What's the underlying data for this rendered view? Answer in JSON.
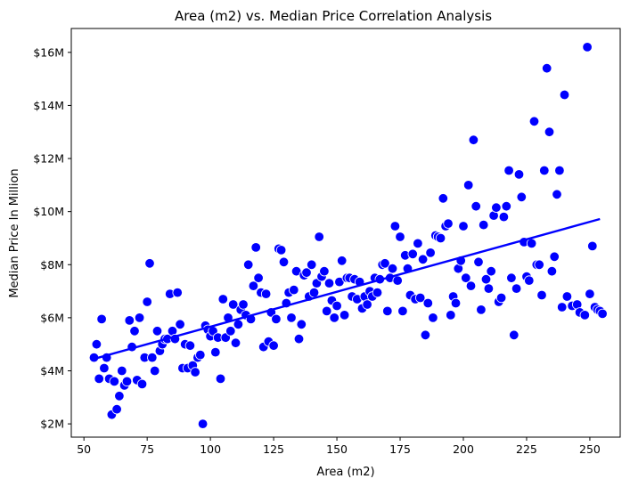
{
  "chart_data": {
    "type": "scatter",
    "title": "Area (m2) vs. Median Price Correlation Analysis",
    "xlabel": "Area (m2)",
    "ylabel": "Median Price In Million",
    "xlim": [
      45,
      262
    ],
    "ylim": [
      1.5,
      16.9
    ],
    "x_ticks": [
      50,
      75,
      100,
      125,
      150,
      175,
      200,
      225,
      250
    ],
    "y_ticks": [
      2,
      4,
      6,
      8,
      10,
      12,
      14,
      16
    ],
    "y_tick_labels": [
      "$2M",
      "$4M",
      "$6M",
      "$8M",
      "$10M",
      "$12M",
      "$14M",
      "$16M"
    ],
    "grid": false,
    "point_color": "#0000ff",
    "trend_line": {
      "color": "#0000ff",
      "x": [
        54,
        254
      ],
      "y": [
        4.45,
        9.72
      ]
    },
    "points": [
      [
        54,
        4.5
      ],
      [
        55,
        5.0
      ],
      [
        56,
        3.7
      ],
      [
        57,
        5.95
      ],
      [
        58,
        4.1
      ],
      [
        59,
        4.5
      ],
      [
        60,
        3.7
      ],
      [
        61,
        2.35
      ],
      [
        62,
        3.6
      ],
      [
        63,
        2.55
      ],
      [
        64,
        3.05
      ],
      [
        65,
        4.0
      ],
      [
        66,
        3.45
      ],
      [
        67,
        3.6
      ],
      [
        68,
        5.9
      ],
      [
        69,
        4.9
      ],
      [
        70,
        5.5
      ],
      [
        71,
        3.65
      ],
      [
        72,
        6.0
      ],
      [
        73,
        3.5
      ],
      [
        74,
        4.5
      ],
      [
        75,
        6.6
      ],
      [
        76,
        8.05
      ],
      [
        77,
        4.5
      ],
      [
        78,
        4.0
      ],
      [
        79,
        5.5
      ],
      [
        80,
        4.75
      ],
      [
        81,
        5.0
      ],
      [
        82,
        5.2
      ],
      [
        83,
        5.2
      ],
      [
        84,
        6.9
      ],
      [
        85,
        5.5
      ],
      [
        86,
        5.2
      ],
      [
        87,
        6.95
      ],
      [
        88,
        5.75
      ],
      [
        89,
        4.1
      ],
      [
        90,
        5.0
      ],
      [
        91,
        4.1
      ],
      [
        92,
        4.95
      ],
      [
        93,
        4.2
      ],
      [
        94,
        3.95
      ],
      [
        95,
        4.5
      ],
      [
        96,
        4.6
      ],
      [
        97,
        2.0
      ],
      [
        98,
        5.7
      ],
      [
        99,
        5.55
      ],
      [
        100,
        5.3
      ],
      [
        101,
        5.5
      ],
      [
        102,
        4.7
      ],
      [
        103,
        5.25
      ],
      [
        104,
        3.7
      ],
      [
        105,
        6.7
      ],
      [
        106,
        5.25
      ],
      [
        107,
        6.0
      ],
      [
        108,
        5.5
      ],
      [
        109,
        6.5
      ],
      [
        110,
        5.05
      ],
      [
        111,
        5.75
      ],
      [
        112,
        6.3
      ],
      [
        113,
        6.5
      ],
      [
        114,
        6.1
      ],
      [
        115,
        8.0
      ],
      [
        116,
        5.95
      ],
      [
        117,
        7.2
      ],
      [
        118,
        8.65
      ],
      [
        119,
        7.5
      ],
      [
        120,
        6.95
      ],
      [
        121,
        4.9
      ],
      [
        122,
        6.9
      ],
      [
        123,
        5.1
      ],
      [
        124,
        6.2
      ],
      [
        125,
        4.95
      ],
      [
        126,
        5.95
      ],
      [
        127,
        8.6
      ],
      [
        128,
        8.55
      ],
      [
        129,
        8.1
      ],
      [
        130,
        6.55
      ],
      [
        131,
        6.95
      ],
      [
        132,
        6.0
      ],
      [
        133,
        7.05
      ],
      [
        134,
        7.75
      ],
      [
        135,
        5.2
      ],
      [
        136,
        5.75
      ],
      [
        137,
        7.6
      ],
      [
        138,
        7.7
      ],
      [
        139,
        6.8
      ],
      [
        140,
        8.0
      ],
      [
        141,
        6.95
      ],
      [
        142,
        7.3
      ],
      [
        143,
        9.05
      ],
      [
        144,
        7.55
      ],
      [
        145,
        7.75
      ],
      [
        146,
        6.25
      ],
      [
        147,
        7.3
      ],
      [
        148,
        6.65
      ],
      [
        149,
        6.0
      ],
      [
        150,
        6.45
      ],
      [
        151,
        7.35
      ],
      [
        152,
        8.15
      ],
      [
        153,
        6.1
      ],
      [
        154,
        7.5
      ],
      [
        155,
        7.5
      ],
      [
        156,
        6.8
      ],
      [
        157,
        7.45
      ],
      [
        158,
        6.7
      ],
      [
        159,
        7.35
      ],
      [
        160,
        6.35
      ],
      [
        161,
        6.8
      ],
      [
        162,
        6.5
      ],
      [
        163,
        7.0
      ],
      [
        164,
        6.8
      ],
      [
        165,
        7.5
      ],
      [
        166,
        6.95
      ],
      [
        167,
        7.45
      ],
      [
        168,
        8.0
      ],
      [
        169,
        8.05
      ],
      [
        170,
        6.25
      ],
      [
        171,
        7.5
      ],
      [
        172,
        7.85
      ],
      [
        173,
        9.45
      ],
      [
        174,
        7.4
      ],
      [
        175,
        9.05
      ],
      [
        176,
        6.25
      ],
      [
        177,
        8.35
      ],
      [
        178,
        7.85
      ],
      [
        179,
        6.85
      ],
      [
        180,
        8.4
      ],
      [
        181,
        6.7
      ],
      [
        182,
        8.8
      ],
      [
        183,
        6.75
      ],
      [
        184,
        8.2
      ],
      [
        185,
        5.35
      ],
      [
        186,
        6.55
      ],
      [
        187,
        8.45
      ],
      [
        188,
        6.0
      ],
      [
        189,
        9.1
      ],
      [
        190,
        9.05
      ],
      [
        191,
        9.0
      ],
      [
        192,
        10.5
      ],
      [
        193,
        9.45
      ],
      [
        194,
        9.55
      ],
      [
        195,
        6.1
      ],
      [
        196,
        6.8
      ],
      [
        197,
        6.55
      ],
      [
        198,
        7.85
      ],
      [
        199,
        8.15
      ],
      [
        200,
        9.45
      ],
      [
        201,
        7.5
      ],
      [
        202,
        11.0
      ],
      [
        203,
        7.2
      ],
      [
        204,
        12.7
      ],
      [
        205,
        10.2
      ],
      [
        206,
        8.1
      ],
      [
        207,
        6.3
      ],
      [
        208,
        9.5
      ],
      [
        209,
        7.45
      ],
      [
        210,
        7.1
      ],
      [
        211,
        7.75
      ],
      [
        212,
        9.85
      ],
      [
        213,
        10.15
      ],
      [
        214,
        6.6
      ],
      [
        215,
        6.75
      ],
      [
        216,
        9.8
      ],
      [
        217,
        10.2
      ],
      [
        218,
        11.55
      ],
      [
        219,
        7.5
      ],
      [
        220,
        5.35
      ],
      [
        221,
        7.1
      ],
      [
        222,
        11.4
      ],
      [
        223,
        10.55
      ],
      [
        224,
        8.85
      ],
      [
        225,
        7.55
      ],
      [
        226,
        7.4
      ],
      [
        227,
        8.8
      ],
      [
        228,
        13.4
      ],
      [
        229,
        8.0
      ],
      [
        230,
        8.0
      ],
      [
        231,
        6.85
      ],
      [
        232,
        11.55
      ],
      [
        233,
        15.4
      ],
      [
        234,
        13.0
      ],
      [
        235,
        7.75
      ],
      [
        236,
        8.3
      ],
      [
        237,
        10.65
      ],
      [
        238,
        11.55
      ],
      [
        239,
        6.4
      ],
      [
        240,
        14.4
      ],
      [
        241,
        6.8
      ],
      [
        243,
        6.45
      ],
      [
        245,
        6.5
      ],
      [
        246,
        6.2
      ],
      [
        248,
        6.1
      ],
      [
        249,
        16.2
      ],
      [
        250,
        6.9
      ],
      [
        251,
        8.7
      ],
      [
        252,
        6.4
      ],
      [
        253,
        6.3
      ],
      [
        254,
        6.25
      ],
      [
        255,
        6.15
      ]
    ]
  }
}
